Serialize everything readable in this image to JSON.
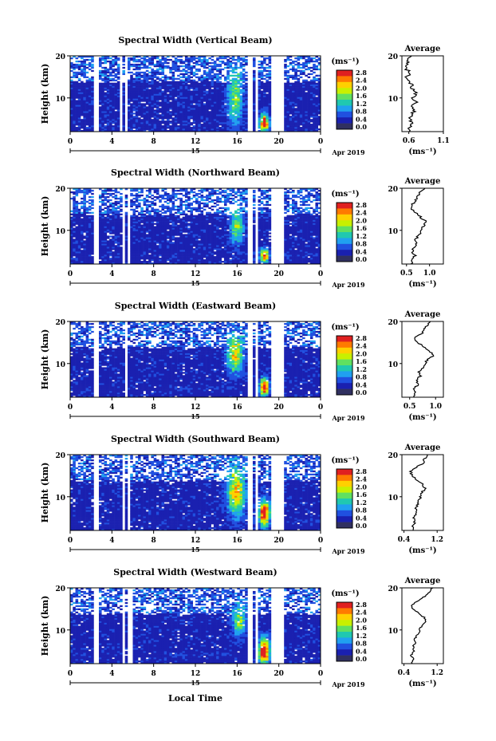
{
  "figure": {
    "x_axis_label": "Local Time",
    "date_label": "Apr 2019",
    "day_label": "15"
  },
  "colorbar": {
    "unit": "(ms⁻¹)",
    "ticks": [
      "2.8",
      "2.4",
      "2.0",
      "1.6",
      "1.2",
      "0.8",
      "0.4",
      "0.0"
    ],
    "colors": [
      "#e02020",
      "#ff7a00",
      "#ffd000",
      "#c8f000",
      "#60e060",
      "#20c8b0",
      "#20a0f0",
      "#2050e0",
      "#1a20b0",
      "#303060"
    ]
  },
  "chart_data": [
    {
      "type": "heatmap",
      "title": "Spectral Width (Vertical Beam)",
      "ylabel": "Height (km)",
      "xlim": [
        0,
        24
      ],
      "ylim": [
        2,
        20
      ],
      "x_ticks": [
        "0",
        "4",
        "8",
        "12",
        "16",
        "20",
        "0"
      ],
      "y_ticks": [
        "10",
        "20"
      ],
      "clim": [
        0.0,
        3.0
      ],
      "gaps": [
        [
          2.3,
          2.8
        ],
        [
          4.7,
          5.0
        ],
        [
          5.3,
          5.6
        ],
        [
          17.0,
          17.4
        ],
        [
          17.7,
          17.95
        ],
        [
          19.3,
          20.5
        ]
      ],
      "hotspots": [
        {
          "t": 15.8,
          "h": 10.0,
          "w": 0.7,
          "d": 6.0,
          "v": 1.3
        },
        {
          "t": 18.6,
          "h": 4.0,
          "w": 0.4,
          "d": 2.0,
          "v": 2.8
        }
      ],
      "average": {
        "title": "Average",
        "xlabel": "(ms⁻¹)",
        "xlim": [
          0.5,
          1.1
        ],
        "x_ticks": [
          "0.6",
          "1.1"
        ],
        "y_ticks": [
          "10",
          "20"
        ],
        "profile": [
          [
            2,
            0.62
          ],
          [
            3,
            0.6
          ],
          [
            4,
            0.66
          ],
          [
            5,
            0.61
          ],
          [
            6,
            0.63
          ],
          [
            7,
            0.68
          ],
          [
            8,
            0.64
          ],
          [
            9,
            0.72
          ],
          [
            10,
            0.66
          ],
          [
            11,
            0.7
          ],
          [
            12,
            0.66
          ],
          [
            13,
            0.64
          ],
          [
            14,
            0.6
          ],
          [
            15,
            0.57
          ],
          [
            16,
            0.62
          ],
          [
            17,
            0.56
          ],
          [
            18,
            0.6
          ],
          [
            19,
            0.58
          ],
          [
            20,
            0.64
          ]
        ]
      }
    },
    {
      "type": "heatmap",
      "title": "Spectral Width (Northward Beam)",
      "ylabel": "Height (km)",
      "xlim": [
        0,
        24
      ],
      "ylim": [
        2,
        20
      ],
      "x_ticks": [
        "0",
        "4",
        "8",
        "12",
        "16",
        "20",
        "0"
      ],
      "y_ticks": [
        "10",
        "20"
      ],
      "clim": [
        0.0,
        3.0
      ],
      "gaps": [
        [
          2.3,
          2.8
        ],
        [
          4.9,
          5.2
        ],
        [
          5.5,
          5.8
        ],
        [
          17.0,
          17.4
        ],
        [
          17.7,
          17.95
        ],
        [
          19.3,
          20.5
        ]
      ],
      "hotspots": [
        {
          "t": 16.0,
          "h": 11.0,
          "w": 0.6,
          "d": 4.0,
          "v": 1.4
        },
        {
          "t": 18.6,
          "h": 4.0,
          "w": 0.4,
          "d": 1.5,
          "v": 2.6
        }
      ],
      "average": {
        "title": "Average",
        "xlabel": "(ms⁻¹)",
        "xlim": [
          0.4,
          1.3
        ],
        "x_ticks": [
          "0.5",
          "1.0"
        ],
        "y_ticks": [
          "10",
          "20"
        ],
        "profile": [
          [
            2,
            0.62
          ],
          [
            3,
            0.6
          ],
          [
            4,
            0.68
          ],
          [
            5,
            0.62
          ],
          [
            6,
            0.66
          ],
          [
            7,
            0.72
          ],
          [
            8,
            0.7
          ],
          [
            9,
            0.78
          ],
          [
            10,
            0.82
          ],
          [
            11,
            0.86
          ],
          [
            12,
            0.94
          ],
          [
            13,
            0.82
          ],
          [
            14,
            0.72
          ],
          [
            15,
            0.62
          ],
          [
            16,
            0.6
          ],
          [
            17,
            0.7
          ],
          [
            18,
            0.74
          ],
          [
            19,
            0.8
          ],
          [
            20,
            0.9
          ]
        ]
      }
    },
    {
      "type": "heatmap",
      "title": "Spectral Width (Eastward Beam)",
      "ylabel": "Height (km)",
      "xlim": [
        0,
        24
      ],
      "ylim": [
        2,
        20
      ],
      "x_ticks": [
        "0",
        "4",
        "8",
        "12",
        "16",
        "20",
        "0"
      ],
      "y_ticks": [
        "10",
        "20"
      ],
      "clim": [
        0.0,
        3.0
      ],
      "gaps": [
        [
          2.3,
          2.8
        ],
        [
          5.2,
          5.6
        ],
        [
          17.0,
          17.4
        ],
        [
          17.7,
          17.95
        ],
        [
          19.3,
          20.5
        ]
      ],
      "hotspots": [
        {
          "t": 15.8,
          "h": 12.0,
          "w": 0.7,
          "d": 4.0,
          "v": 1.8
        },
        {
          "t": 18.6,
          "h": 4.5,
          "w": 0.4,
          "d": 2.0,
          "v": 2.8
        }
      ],
      "average": {
        "title": "Average",
        "xlabel": "(ms⁻¹)",
        "xlim": [
          0.35,
          1.15
        ],
        "x_ticks": [
          "0.5",
          "1.0"
        ],
        "y_ticks": [
          "10",
          "20"
        ],
        "profile": [
          [
            2,
            0.6
          ],
          [
            3,
            0.62
          ],
          [
            4,
            0.58
          ],
          [
            5,
            0.66
          ],
          [
            6,
            0.62
          ],
          [
            7,
            0.7
          ],
          [
            8,
            0.68
          ],
          [
            9,
            0.78
          ],
          [
            10,
            0.8
          ],
          [
            11,
            0.86
          ],
          [
            12,
            0.96
          ],
          [
            13,
            0.9
          ],
          [
            14,
            0.78
          ],
          [
            15,
            0.66
          ],
          [
            16,
            0.6
          ],
          [
            17,
            0.72
          ],
          [
            18,
            0.78
          ],
          [
            19,
            0.84
          ],
          [
            20,
            0.9
          ]
        ]
      }
    },
    {
      "type": "heatmap",
      "title": "Spectral Width (Southward Beam)",
      "ylabel": "Height (km)",
      "xlim": [
        0,
        24
      ],
      "ylim": [
        2,
        20
      ],
      "x_ticks": [
        "0",
        "4",
        "8",
        "12",
        "16",
        "20",
        "0"
      ],
      "y_ticks": [
        "10",
        "20"
      ],
      "clim": [
        0.0,
        3.0
      ],
      "gaps": [
        [
          2.3,
          2.8
        ],
        [
          4.9,
          5.2
        ],
        [
          5.5,
          5.8
        ],
        [
          17.0,
          17.4
        ],
        [
          17.7,
          17.95
        ],
        [
          19.3,
          20.5
        ]
      ],
      "hotspots": [
        {
          "t": 15.9,
          "h": 11.0,
          "w": 0.8,
          "d": 5.0,
          "v": 2.0
        },
        {
          "t": 18.6,
          "h": 6.0,
          "w": 0.5,
          "d": 3.0,
          "v": 2.8
        }
      ],
      "average": {
        "title": "Average",
        "xlabel": "(ms⁻¹)",
        "xlim": [
          0.35,
          1.35
        ],
        "x_ticks": [
          "0.4",
          "1.2"
        ],
        "y_ticks": [
          "10",
          "20"
        ],
        "profile": [
          [
            2,
            0.62
          ],
          [
            3,
            0.6
          ],
          [
            4,
            0.66
          ],
          [
            5,
            0.64
          ],
          [
            6,
            0.7
          ],
          [
            7,
            0.68
          ],
          [
            8,
            0.72
          ],
          [
            9,
            0.76
          ],
          [
            10,
            0.8
          ],
          [
            11,
            0.84
          ],
          [
            12,
            0.9
          ],
          [
            13,
            0.86
          ],
          [
            14,
            0.72
          ],
          [
            15,
            0.6
          ],
          [
            16,
            0.56
          ],
          [
            17,
            0.7
          ],
          [
            18,
            0.86
          ],
          [
            19,
            0.9
          ],
          [
            20,
            0.96
          ]
        ]
      }
    },
    {
      "type": "heatmap",
      "title": "Spectral Width (Westward Beam)",
      "ylabel": "Height (km)",
      "xlim": [
        0,
        24
      ],
      "ylim": [
        2,
        20
      ],
      "x_ticks": [
        "0",
        "4",
        "8",
        "12",
        "16",
        "20",
        "0"
      ],
      "y_ticks": [
        "10",
        "20"
      ],
      "clim": [
        0.0,
        3.0
      ],
      "gaps": [
        [
          2.3,
          2.8
        ],
        [
          5.0,
          5.3
        ],
        [
          5.6,
          5.9
        ],
        [
          17.0,
          17.4
        ],
        [
          17.7,
          17.95
        ],
        [
          19.3,
          20.5
        ]
      ],
      "hotspots": [
        {
          "t": 16.2,
          "h": 12.0,
          "w": 0.6,
          "d": 3.0,
          "v": 1.4
        },
        {
          "t": 18.6,
          "h": 5.0,
          "w": 0.5,
          "d": 3.0,
          "v": 2.8
        }
      ],
      "average": {
        "title": "Average",
        "xlabel": "(ms⁻¹)",
        "xlim": [
          0.35,
          1.35
        ],
        "x_ticks": [
          "0.4",
          "1.2"
        ],
        "y_ticks": [
          "10",
          "20"
        ],
        "profile": [
          [
            2,
            0.6
          ],
          [
            3,
            0.62
          ],
          [
            4,
            0.58
          ],
          [
            5,
            0.64
          ],
          [
            6,
            0.62
          ],
          [
            7,
            0.68
          ],
          [
            8,
            0.66
          ],
          [
            9,
            0.74
          ],
          [
            10,
            0.78
          ],
          [
            11,
            0.84
          ],
          [
            12,
            0.94
          ],
          [
            13,
            0.88
          ],
          [
            14,
            0.76
          ],
          [
            15,
            0.62
          ],
          [
            16,
            0.58
          ],
          [
            17,
            0.74
          ],
          [
            18,
            0.9
          ],
          [
            19,
            1.0
          ],
          [
            20,
            1.1
          ]
        ]
      }
    }
  ]
}
